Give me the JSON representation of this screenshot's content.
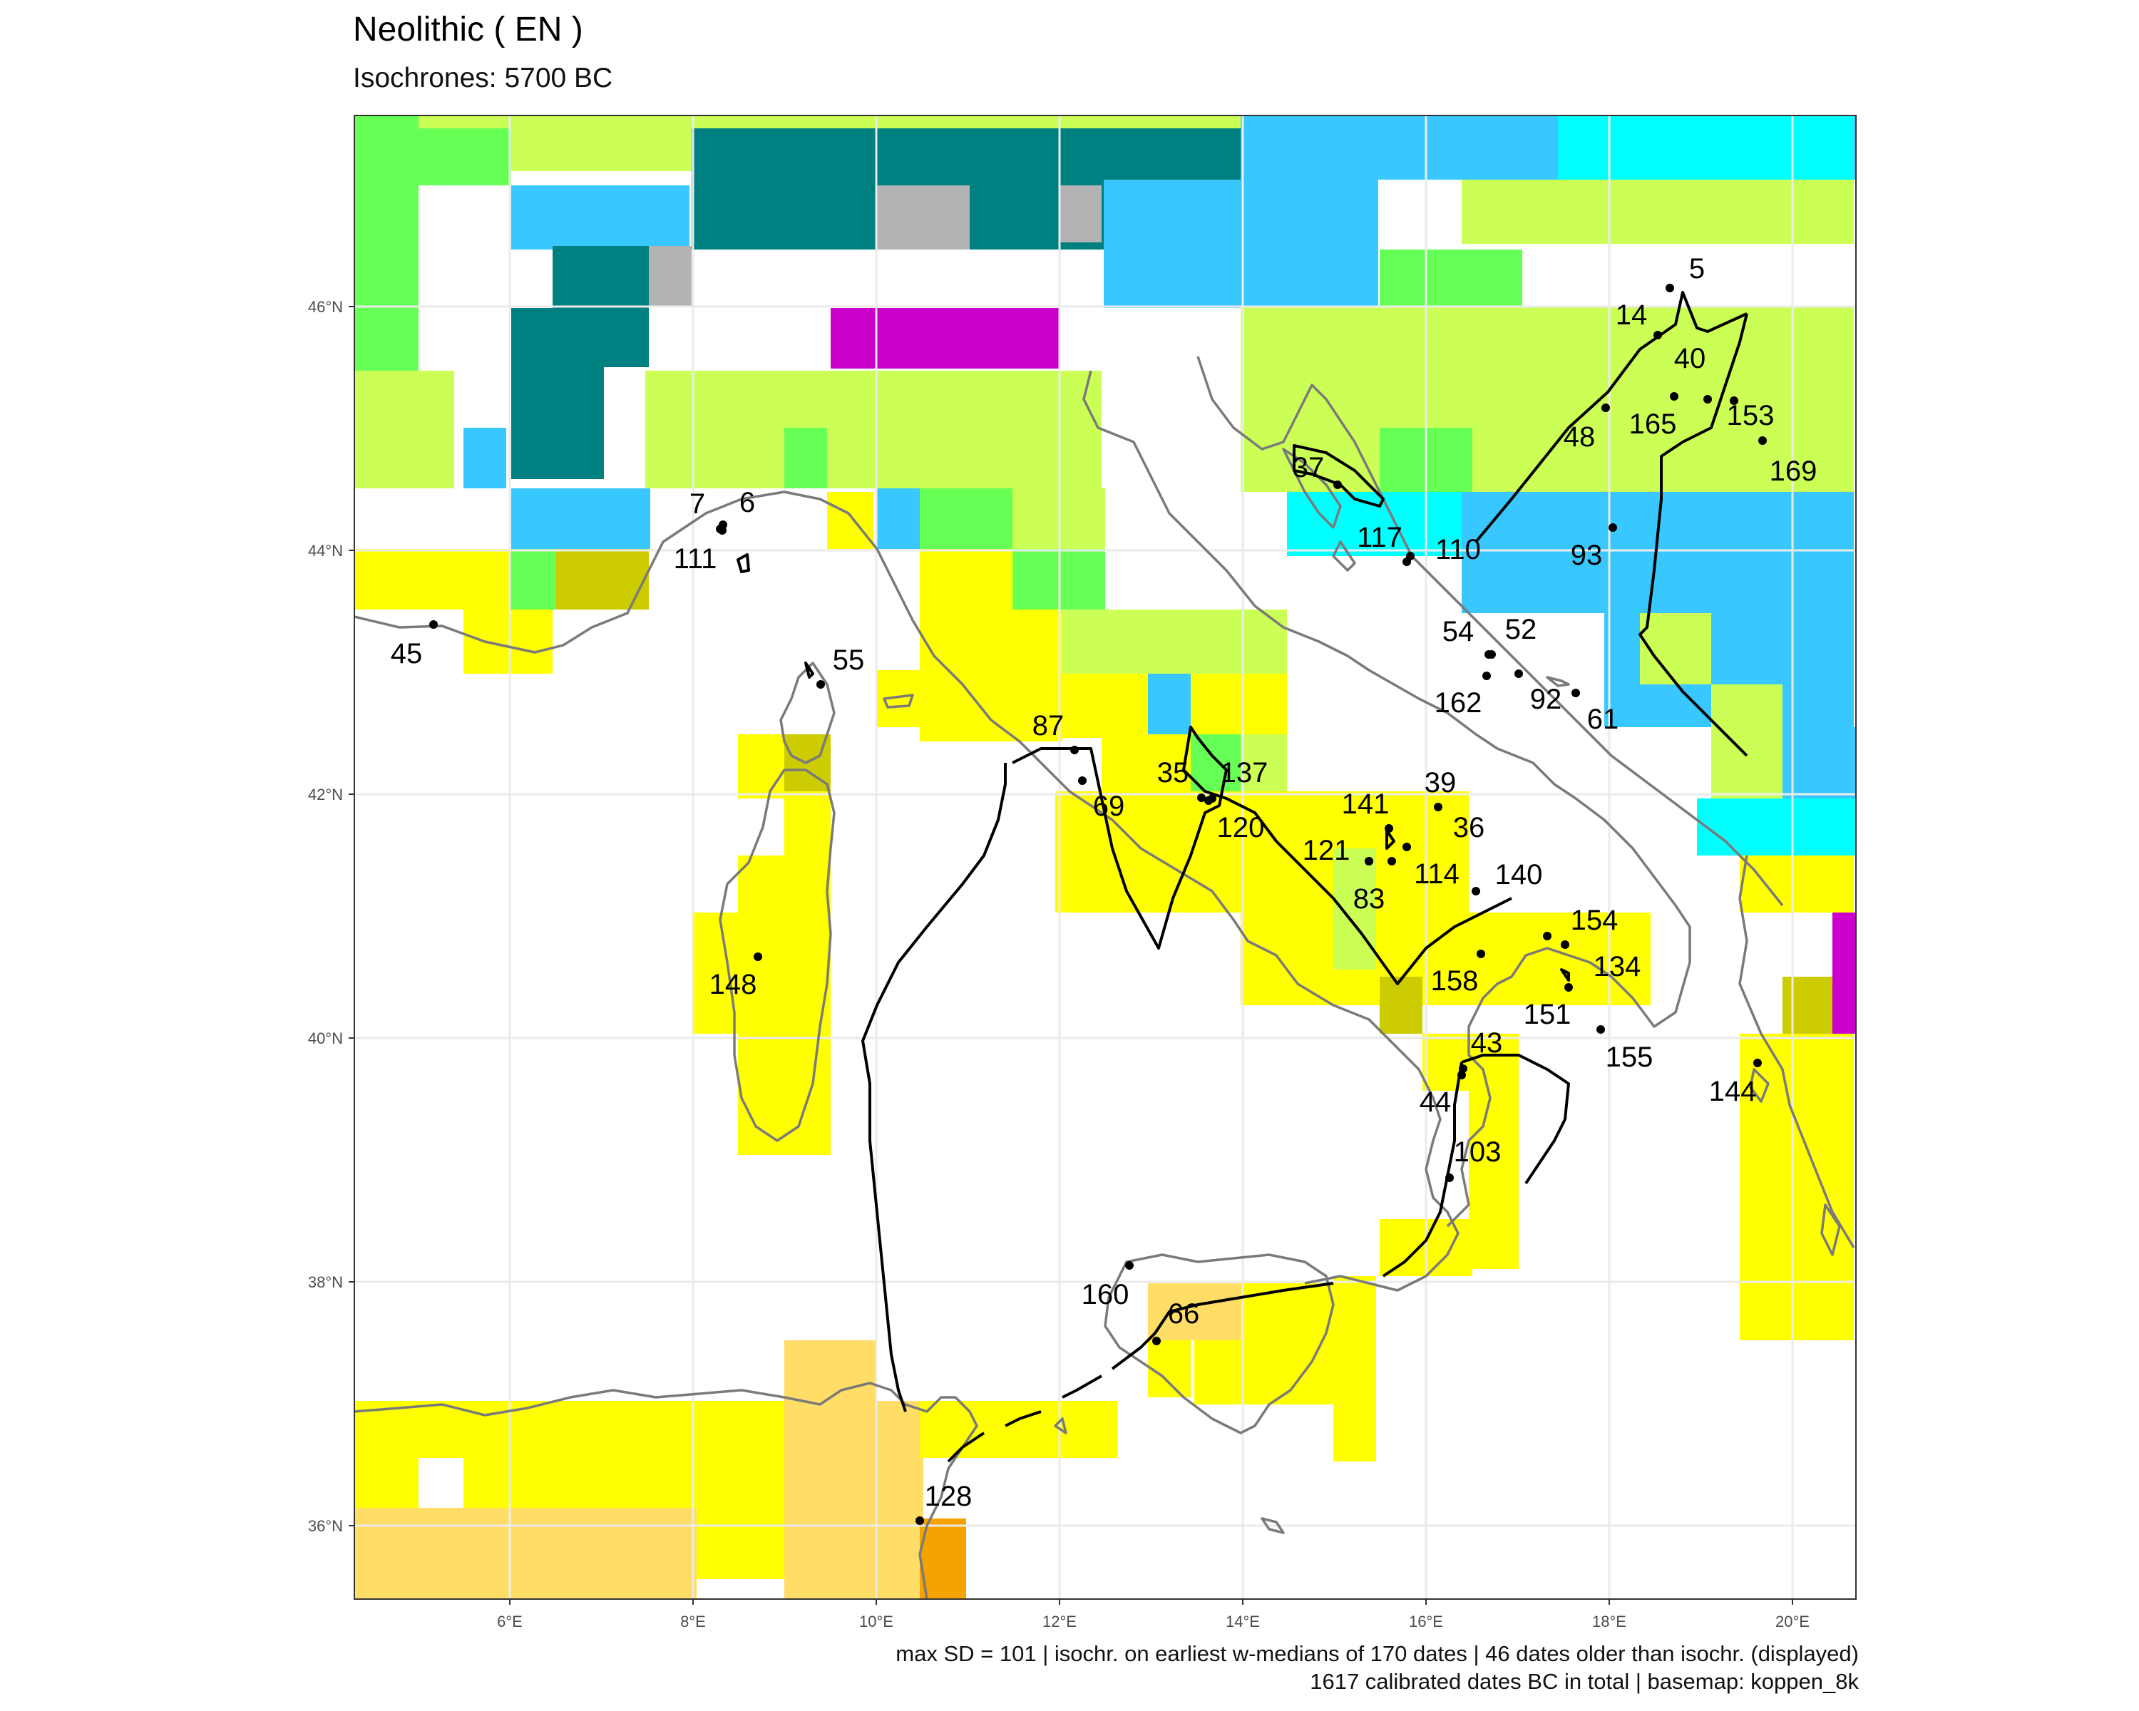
{
  "title": "Neolithic ( EN )",
  "subtitle": "Isochrones: 5700 BC",
  "caption": {
    "line1": "max SD = 101 | isochr. on earliest w-medians of 170 dates | 46 dates older than isochr. (displayed)",
    "line2": "1617 calibrated dates BC in total | basemap: koppen_8k"
  },
  "axes": {
    "x_ticks": [
      "6°E",
      "8°E",
      "10°E",
      "12°E",
      "14°E",
      "16°E",
      "18°E",
      "20°E"
    ],
    "y_ticks": [
      "46°N",
      "44°N",
      "42°N",
      "40°N",
      "38°N",
      "36°N"
    ]
  },
  "colors": {
    "tropical_arid_yellow": "#ffff00",
    "lime": "#ccff55",
    "green": "#66ff55",
    "sky_blue": "#38c8ff",
    "teal": "#008080",
    "grey": "#b3b3b3",
    "magenta": "#cc00cc",
    "cyan": "#00ffff",
    "olive": "#cccc00",
    "sand": "#ffdd66",
    "orange": "#f4a300",
    "coast": "#7a7a7a",
    "isochrone": "#000000"
  },
  "sites": [
    {
      "label": "5"
    },
    {
      "label": "14"
    },
    {
      "label": "40"
    },
    {
      "label": "153"
    },
    {
      "label": "165"
    },
    {
      "label": "48"
    },
    {
      "label": "169"
    },
    {
      "label": "93"
    },
    {
      "label": "7"
    },
    {
      "label": "6"
    },
    {
      "label": "111"
    },
    {
      "label": "45"
    },
    {
      "label": "55"
    },
    {
      "label": "37"
    },
    {
      "label": "117"
    },
    {
      "label": "110"
    },
    {
      "label": "54"
    },
    {
      "label": "52"
    },
    {
      "label": "162"
    },
    {
      "label": "92"
    },
    {
      "label": "61"
    },
    {
      "label": "87"
    },
    {
      "label": "69"
    },
    {
      "label": "35"
    },
    {
      "label": "137"
    },
    {
      "label": "120"
    },
    {
      "label": "141"
    },
    {
      "label": "39"
    },
    {
      "label": "36"
    },
    {
      "label": "121"
    },
    {
      "label": "114"
    },
    {
      "label": "83"
    },
    {
      "label": "140"
    },
    {
      "label": "154"
    },
    {
      "label": "134"
    },
    {
      "label": "158"
    },
    {
      "label": "151"
    },
    {
      "label": "155"
    },
    {
      "label": "148"
    },
    {
      "label": "43"
    },
    {
      "label": "44"
    },
    {
      "label": "144"
    },
    {
      "label": "103"
    },
    {
      "label": "160"
    },
    {
      "label": "66"
    },
    {
      "label": "128"
    }
  ]
}
